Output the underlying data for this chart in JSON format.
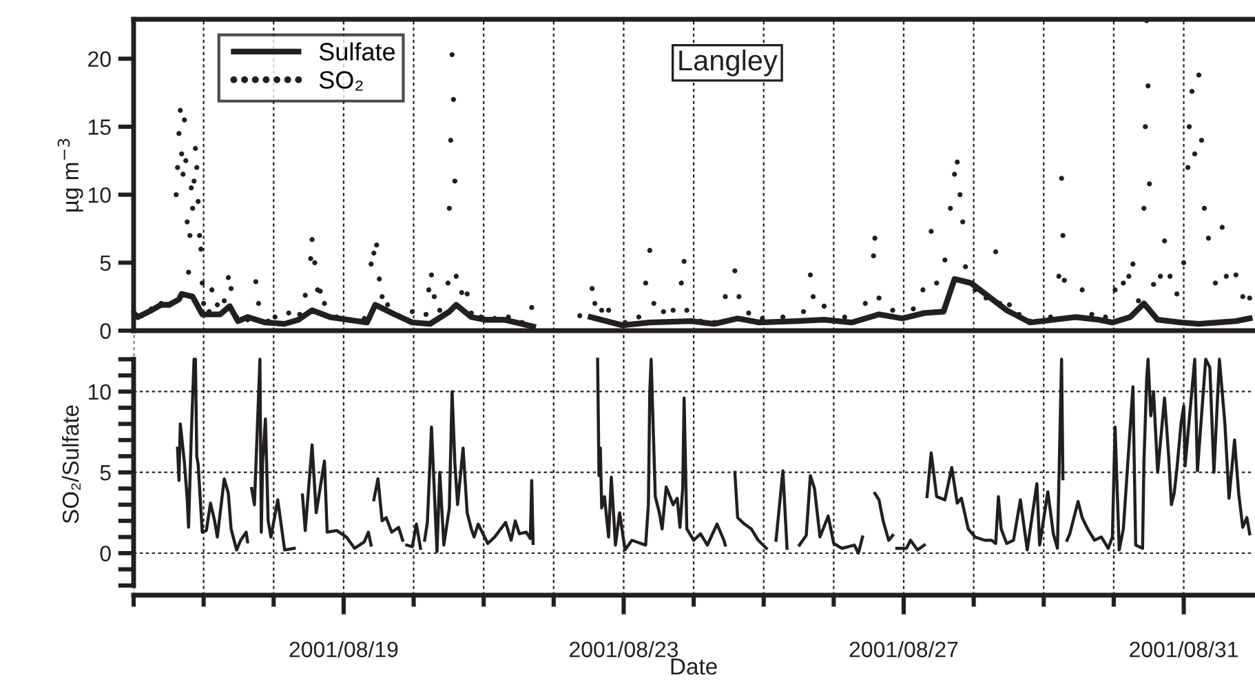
{
  "chart_data": [
    {
      "type": "line",
      "ylabel": "µg m$^{−3}$",
      "annotations": [
        "Langley"
      ],
      "legend": "top left",
      "grid": "x",
      "tick_labels": "y",
      "xlim": [
        "2001-08-16",
        "2001-09-01"
      ],
      "xticks": [
        {
          "value": "2001-08-16",
          "label": null
        },
        {
          "value": "2001-08-17",
          "label": null
        },
        {
          "value": "2001-08-18",
          "label": null
        },
        {
          "value": "2001-08-19",
          "label": null
        },
        {
          "value": "2001-08-20",
          "label": null
        },
        {
          "value": "2001-08-21",
          "label": null
        },
        {
          "value": "2001-08-22",
          "label": null
        },
        {
          "value": "2001-08-23",
          "label": null
        },
        {
          "value": "2001-08-24",
          "label": null
        },
        {
          "value": "2001-08-25",
          "label": null
        },
        {
          "value": "2001-08-26",
          "label": null
        },
        {
          "value": "2001-08-27",
          "label": null
        },
        {
          "value": "2001-08-28",
          "label": null
        },
        {
          "value": "2001-08-29",
          "label": null
        },
        {
          "value": "2001-08-30",
          "label": null
        },
        {
          "value": "2001-08-31",
          "label": null
        }
      ],
      "ylim": [
        0,
        22.9
      ],
      "yticks": [
        0,
        5,
        10,
        15,
        20
      ],
      "series": [
        {
          "name": "Sulfate",
          "color": "#231f20",
          "x": [
            "2001-08-16T00:00",
            "2001-08-16T01:25",
            "2001-08-16T06:07",
            "2001-08-16T09:25",
            "2001-08-16T12:14",
            "2001-08-16T15:32",
            "2001-08-16T16:28",
            "2001-08-16T20:14",
            "2001-08-16T23:32",
            "2001-08-17T05:39",
            "2001-08-17T08:57",
            "2001-08-17T11:46",
            "2001-08-17T15:04",
            "2001-08-17T21:11",
            "2001-08-18T03:46",
            "2001-08-18T08:28",
            "2001-08-18T13:11",
            "2001-08-18T19:18",
            "2001-08-19T01:25",
            "2001-08-19T08:00",
            "2001-08-19T10:50",
            "2001-08-19T17:25",
            "2001-08-19T23:32",
            "2001-08-20T05:39",
            "2001-08-20T12:14",
            "2001-08-20T14:35",
            "2001-08-20T19:46",
            "2001-08-21T00:28",
            "2001-08-21T07:04",
            "2001-08-21T13:11",
            "2001-08-21T16:57",
            "2001-08-22T03:00",
            "2001-08-22T12:42",
            "2001-08-22T23:32",
            "2001-08-23T08:57",
            "2001-08-23T23:04",
            "2001-08-24T07:04",
            "2001-08-24T15:04",
            "2001-08-24T22:36",
            "2001-08-25T11:18",
            "2001-08-25T20:43",
            "2001-08-26T06:07",
            "2001-08-26T15:32",
            "2001-08-26T23:32",
            "2001-08-27T07:04",
            "2001-08-27T13:39",
            "2001-08-27T17:25",
            "2001-08-27T23:04",
            "2001-08-28T05:11",
            "2001-08-28T11:18",
            "2001-08-28T19:18",
            "2001-08-29T03:18",
            "2001-08-29T10:50",
            "2001-08-29T18:50",
            "2001-08-29T23:32",
            "2001-08-30T05:39",
            "2001-08-30T10:21",
            "2001-08-30T15:04",
            "2001-08-30T23:04",
            "2001-08-31T05:11",
            "2001-08-31T17:53",
            "2001-08-31T22:36"
          ],
          "values": [
            1.3,
            1.0,
            1.5,
            1.9,
            1.9,
            2.3,
            2.7,
            2.5,
            1.2,
            1.2,
            1.8,
            0.7,
            1.0,
            0.6,
            0.5,
            0.8,
            1.5,
            1.0,
            0.8,
            0.6,
            1.9,
            1.2,
            0.6,
            0.5,
            1.4,
            1.9,
            1.0,
            0.8,
            0.8,
            0.5,
            0.3,
            null,
            1.0,
            0.4,
            0.6,
            0.7,
            0.5,
            0.9,
            0.6,
            0.7,
            0.8,
            0.6,
            1.2,
            0.9,
            1.3,
            1.4,
            3.8,
            3.5,
            2.5,
            1.5,
            0.6,
            0.8,
            1.0,
            0.8,
            0.6,
            1.0,
            2.0,
            0.8,
            0.6,
            0.5,
            0.7,
            0.9
          ]
        },
        {
          "name": "SO₂",
          "color": "#231f20",
          "type": "scatter",
          "marker": "circle",
          "x": [
            "2001-08-16T00:00",
            "2001-08-16T02:49",
            "2001-08-16T06:07",
            "2001-08-16T09:25",
            "2001-08-16T12:42",
            "2001-08-16T14:35",
            "2001-08-16T15:04",
            "2001-08-16T15:32",
            "2001-08-16T16:00",
            "2001-08-16T16:28",
            "2001-08-16T16:57",
            "2001-08-16T17:25",
            "2001-08-16T17:53",
            "2001-08-16T18:21",
            "2001-08-16T18:50",
            "2001-08-16T19:18",
            "2001-08-16T19:46",
            "2001-08-16T20:14",
            "2001-08-16T20:43",
            "2001-08-16T21:11",
            "2001-08-16T21:39",
            "2001-08-16T22:07",
            "2001-08-16T22:36",
            "2001-08-16T23:04",
            "2001-08-16T23:32",
            "2001-08-17T00:00",
            "2001-08-17T01:53",
            "2001-08-17T02:49",
            "2001-08-17T04:42",
            "2001-08-17T07:04",
            "2001-08-17T08:28",
            "2001-08-17T09:25",
            "2001-08-17T11:18",
            "2001-08-17T15:04",
            "2001-08-17T17:53",
            "2001-08-17T18:50",
            "2001-08-17T22:07",
            "2001-08-18T00:28",
            "2001-08-18T05:11",
            "2001-08-18T08:57",
            "2001-08-18T10:50",
            "2001-08-18T12:42",
            "2001-08-18T13:11",
            "2001-08-18T14:07",
            "2001-08-18T15:04",
            "2001-08-18T16:00",
            "2001-08-18T17:25",
            "2001-08-18T21:39",
            "2001-08-19T02:21",
            "2001-08-19T07:04",
            "2001-08-19T09:25",
            "2001-08-19T10:21",
            "2001-08-19T11:18",
            "2001-08-19T12:14",
            "2001-08-19T13:11",
            "2001-08-19T15:04",
            "2001-08-19T18:50",
            "2001-08-19T23:32",
            "2001-08-20T04:14",
            "2001-08-20T05:11",
            "2001-08-20T06:07",
            "2001-08-20T07:04",
            "2001-08-20T08:57",
            "2001-08-20T11:46",
            "2001-08-20T12:14",
            "2001-08-20T12:42",
            "2001-08-20T13:11",
            "2001-08-20T13:39",
            "2001-08-20T14:07",
            "2001-08-20T14:35",
            "2001-08-20T16:28",
            "2001-08-20T18:21",
            "2001-08-20T19:46",
            "2001-08-20T23:04",
            "2001-08-21T03:46",
            "2001-08-21T08:28",
            "2001-08-21T13:11",
            "2001-08-21T16:28",
            "2001-08-22T08:57",
            "2001-08-22T13:11",
            "2001-08-22T14:07",
            "2001-08-22T16:28",
            "2001-08-22T18:50",
            "2001-08-23T00:28",
            "2001-08-23T05:11",
            "2001-08-23T07:32",
            "2001-08-23T08:57",
            "2001-08-23T10:21",
            "2001-08-23T13:39",
            "2001-08-23T16:57",
            "2001-08-23T19:46",
            "2001-08-23T20:43",
            "2001-08-23T21:39",
            "2001-08-24T02:21",
            "2001-08-24T07:04",
            "2001-08-24T10:50",
            "2001-08-24T14:07",
            "2001-08-24T15:32",
            "2001-08-24T18:50",
            "2001-08-24T23:32",
            "2001-08-25T06:35",
            "2001-08-25T13:39",
            "2001-08-25T16:00",
            "2001-08-25T16:57",
            "2001-08-25T20:43",
            "2001-08-26T03:46",
            "2001-08-26T10:50",
            "2001-08-26T13:39",
            "2001-08-26T14:07",
            "2001-08-26T15:32",
            "2001-08-26T20:14",
            "2001-08-27T03:18",
            "2001-08-27T06:35",
            "2001-08-27T09:25",
            "2001-08-27T11:18",
            "2001-08-27T14:07",
            "2001-08-27T16:00",
            "2001-08-27T17:25",
            "2001-08-27T18:21",
            "2001-08-27T19:18",
            "2001-08-27T20:14",
            "2001-08-27T21:11",
            "2001-08-28T00:28",
            "2001-08-28T04:14",
            "2001-08-28T07:32",
            "2001-08-28T08:57",
            "2001-08-28T12:14",
            "2001-08-28T15:32",
            "2001-08-28T19:18",
            "2001-08-29T02:21",
            "2001-08-29T05:11",
            "2001-08-29T06:07",
            "2001-08-29T06:35",
            "2001-08-29T07:04",
            "2001-08-29T13:11",
            "2001-08-29T16:28",
            "2001-08-29T21:11",
            "2001-08-30T00:28",
            "2001-08-30T03:18",
            "2001-08-30T05:11",
            "2001-08-30T06:35",
            "2001-08-30T08:28",
            "2001-08-30T10:21",
            "2001-08-30T10:50",
            "2001-08-30T11:18",
            "2001-08-30T11:46",
            "2001-08-30T12:14",
            "2001-08-30T13:39",
            "2001-08-30T16:00",
            "2001-08-30T17:25",
            "2001-08-30T19:18",
            "2001-08-30T21:39",
            "2001-08-31T00:00",
            "2001-08-31T01:25",
            "2001-08-31T01:53",
            "2001-08-31T02:49",
            "2001-08-31T03:46",
            "2001-08-31T05:11",
            "2001-08-31T06:07",
            "2001-08-31T07:04",
            "2001-08-31T08:28",
            "2001-08-31T10:50",
            "2001-08-31T13:11",
            "2001-08-31T14:35",
            "2001-08-31T17:53",
            "2001-08-31T20:14",
            "2001-08-31T22:36"
          ],
          "values": [
            1.4,
            1.1,
            1.6,
            2.0,
            2.0,
            10.0,
            12.0,
            14.5,
            16.2,
            13.0,
            11.5,
            15.5,
            12.5,
            8.0,
            4.3,
            7.0,
            10.5,
            9.0,
            11.0,
            13.4,
            12.0,
            9.5,
            7.0,
            6.0,
            3.5,
            2.0,
            1.4,
            3.0,
            1.9,
            2.2,
            3.9,
            3.1,
            1.0,
            0.8,
            3.6,
            2.0,
            0.7,
            1.0,
            1.3,
            1.2,
            2.6,
            5.3,
            6.7,
            5.0,
            3.0,
            2.9,
            2.0,
            1.0,
            0.8,
            0.9,
            4.9,
            5.7,
            6.3,
            3.8,
            2.5,
            1.9,
            1.1,
            1.4,
            1.2,
            3.0,
            4.1,
            2.5,
            1.5,
            3.5,
            9.0,
            14.0,
            20.3,
            17.0,
            11.0,
            4.0,
            2.8,
            2.7,
            1.3,
            1.0,
            0.9,
            1.0,
            0.6,
            1.7,
            1.1,
            3.1,
            2.0,
            1.5,
            1.5,
            0.6,
            1.0,
            3.5,
            5.9,
            2.0,
            1.4,
            1.5,
            3.5,
            5.1,
            1.5,
            0.7,
            0.6,
            2.5,
            4.4,
            2.5,
            1.3,
            0.9,
            1.0,
            1.4,
            4.1,
            2.5,
            1.8,
            1.0,
            2.0,
            5.5,
            6.8,
            2.4,
            1.5,
            1.6,
            3.0,
            7.3,
            3.5,
            5.2,
            9.0,
            11.5,
            12.4,
            10.0,
            8.0,
            4.7,
            3.0,
            2.4,
            5.8,
            2.0,
            1.9,
            1.2,
            0.7,
            1.0,
            4.0,
            11.2,
            7.0,
            3.7,
            3.0,
            1.2,
            1.0,
            3.0,
            3.5,
            4.0,
            4.9,
            2.2,
            9.0,
            15.0,
            22.8,
            18.0,
            10.8,
            3.4,
            4.0,
            6.6,
            4.0,
            2.7,
            5.0,
            12.0,
            15.0,
            17.6,
            13.0,
            18.8,
            14.0,
            9.0,
            6.8,
            3.5,
            7.6,
            4.0,
            4.1,
            2.5,
            2.4
          ]
        }
      ]
    },
    {
      "type": "line",
      "ylabel": "SO₂/Sulfate",
      "xlabel": "Date",
      "grid": true,
      "xlim": [
        "2001-08-16",
        "2001-09-01"
      ],
      "xticks": [
        {
          "value": "2001-08-16",
          "label": null
        },
        {
          "value": "2001-08-17",
          "label": null
        },
        {
          "value": "2001-08-18",
          "label": null
        },
        {
          "value": "2001-08-19",
          "label": "2001/08/19"
        },
        {
          "value": "2001-08-20",
          "label": null
        },
        {
          "value": "2001-08-21",
          "label": null
        },
        {
          "value": "2001-08-22",
          "label": null
        },
        {
          "value": "2001-08-23",
          "label": "2001/08/23"
        },
        {
          "value": "2001-08-24",
          "label": null
        },
        {
          "value": "2001-08-25",
          "label": null
        },
        {
          "value": "2001-08-26",
          "label": null
        },
        {
          "value": "2001-08-27",
          "label": "2001/08/27"
        },
        {
          "value": "2001-08-28",
          "label": null
        },
        {
          "value": "2001-08-29",
          "label": null
        },
        {
          "value": "2001-08-30",
          "label": null
        },
        {
          "value": "2001-08-31",
          "label": "2001/08/31"
        }
      ],
      "ylim": [
        -2.6,
        13.6
      ],
      "yticks": [
        {
          "value": -2,
          "label": null
        },
        {
          "value": -1,
          "label": null
        },
        0,
        {
          "value": 1,
          "label": null
        },
        {
          "value": 2,
          "label": null
        },
        {
          "value": 3,
          "label": null
        },
        {
          "value": 4,
          "label": null
        },
        5,
        {
          "value": 6,
          "label": null
        },
        {
          "value": 7,
          "label": null
        },
        {
          "value": 8,
          "label": null
        },
        {
          "value": 9,
          "label": null
        },
        10,
        {
          "value": 11,
          "label": null
        },
        {
          "value": 12,
          "label": null
        }
      ],
      "series": [
        {
          "color": "#231f20",
          "x": [
            "2001-08-16T15:04",
            "2001-08-16T15:32",
            "2001-08-16T16:00",
            "2001-08-16T17:25",
            "2001-08-16T18:21",
            "2001-08-16T18:50",
            "2001-08-16T19:46",
            "2001-08-16T20:43",
            "2001-08-16T21:11",
            "2001-08-16T21:39",
            "2001-08-16T22:07",
            "2001-08-16T23:32",
            "2001-08-17T00:56",
            "2001-08-17T02:21",
            "2001-08-17T03:46",
            "2001-08-17T04:42",
            "2001-08-17T07:04",
            "2001-08-17T08:28",
            "2001-08-17T09:25",
            "2001-08-17T11:18",
            "2001-08-17T12:42",
            "2001-08-17T14:35",
            "2001-08-17T15:04",
            "2001-08-17T15:32",
            "2001-08-17T16:28",
            "2001-08-17T17:25",
            "2001-08-17T19:18",
            "2001-08-17T19:46",
            "2001-08-17T20:14",
            "2001-08-17T21:11",
            "2001-08-17T22:07",
            "2001-08-17T23:04",
            "2001-08-18T01:25",
            "2001-08-18T03:46",
            "2001-08-18T07:04",
            "2001-08-18T08:28",
            "2001-08-18T09:53",
            "2001-08-18T10:50",
            "2001-08-18T13:11",
            "2001-08-18T14:35",
            "2001-08-18T17:25",
            "2001-08-18T18:21",
            "2001-08-18T21:39",
            "2001-08-19T00:56",
            "2001-08-19T03:46",
            "2001-08-19T07:04",
            "2001-08-19T08:28",
            "2001-08-19T09:25",
            "2001-08-19T09:53",
            "2001-08-19T10:21",
            "2001-08-19T11:46",
            "2001-08-19T13:11",
            "2001-08-19T14:35",
            "2001-08-19T16:28",
            "2001-08-19T18:50",
            "2001-08-19T20:14",
            "2001-08-19T20:43",
            "2001-08-19T21:39",
            "2001-08-19T23:32",
            "2001-08-20T00:56",
            "2001-08-20T02:21",
            "2001-08-20T02:49",
            "2001-08-20T03:46",
            "2001-08-20T04:42",
            "2001-08-20T06:07",
            "2001-08-20T08:00",
            "2001-08-20T08:57",
            "2001-08-20T10:21",
            "2001-08-20T12:14",
            "2001-08-20T13:11",
            "2001-08-20T14:07",
            "2001-08-20T15:04",
            "2001-08-20T16:57",
            "2001-08-20T18:21",
            "2001-08-20T19:46",
            "2001-08-20T20:43",
            "2001-08-20T22:07",
            "2001-08-21T01:25",
            "2001-08-21T03:46",
            "2001-08-21T07:32",
            "2001-08-21T09:25",
            "2001-08-21T10:50",
            "2001-08-21T12:14",
            "2001-08-21T14:35",
            "2001-08-21T16:00",
            "2001-08-21T16:28",
            "2001-08-21T16:57",
            "2001-08-21T22:36",
            "2001-08-22T15:04",
            "2001-08-22T15:32",
            "2001-08-22T16:00",
            "2001-08-22T16:28",
            "2001-08-22T17:25",
            "2001-08-22T18:50",
            "2001-08-22T19:46",
            "2001-08-22T21:11",
            "2001-08-22T22:36",
            "2001-08-23T00:28",
            "2001-08-23T02:49",
            "2001-08-23T07:32",
            "2001-08-23T08:28",
            "2001-08-23T08:57",
            "2001-08-23T09:25",
            "2001-08-23T10:50",
            "2001-08-23T12:14",
            "2001-08-23T13:11",
            "2001-08-23T14:35",
            "2001-08-23T16:57",
            "2001-08-23T18:21",
            "2001-08-23T19:18",
            "2001-08-23T20:14",
            "2001-08-23T20:43",
            "2001-08-23T21:39",
            "2001-08-24T00:00",
            "2001-08-24T02:21",
            "2001-08-24T04:42",
            "2001-08-24T08:00",
            "2001-08-24T10:21",
            "2001-08-24T10:50",
            "2001-08-24T12:14",
            "2001-08-24T14:07",
            "2001-08-24T15:04",
            "2001-08-24T17:25",
            "2001-08-24T19:46",
            "2001-08-24T22:07",
            "2001-08-25T00:56",
            "2001-08-25T02:21",
            "2001-08-25T04:14",
            "2001-08-25T06:35",
            "2001-08-25T08:00",
            "2001-08-25T09:53",
            "2001-08-25T12:14",
            "2001-08-25T14:35",
            "2001-08-25T16:00",
            "2001-08-25T17:25",
            "2001-08-25T19:18",
            "2001-08-25T22:07",
            "2001-08-26T00:00",
            "2001-08-26T02:49",
            "2001-08-26T07:04",
            "2001-08-26T08:28",
            "2001-08-26T09:53",
            "2001-08-26T11:46",
            "2001-08-26T14:07",
            "2001-08-26T15:32",
            "2001-08-26T16:57",
            "2001-08-26T18:50",
            "2001-08-26T20:14",
            "2001-08-26T20:43",
            "2001-08-26T21:39",
            "2001-08-27T00:56",
            "2001-08-27T02:21",
            "2001-08-27T04:42",
            "2001-08-27T07:04",
            "2001-08-27T07:32",
            "2001-08-27T08:00",
            "2001-08-27T09:25",
            "2001-08-27T11:18",
            "2001-08-27T14:07",
            "2001-08-27T16:28",
            "2001-08-27T18:21",
            "2001-08-27T19:46",
            "2001-08-27T22:07",
            "2001-08-28T00:28",
            "2001-08-28T03:46",
            "2001-08-28T06:07",
            "2001-08-28T07:32",
            "2001-08-28T08:28",
            "2001-08-28T09:25",
            "2001-08-28T11:18",
            "2001-08-28T13:39",
            "2001-08-28T16:00",
            "2001-08-28T18:21",
            "2001-08-28T21:39",
            "2001-08-28T22:36",
            "2001-08-29T01:25",
            "2001-08-29T03:18",
            "2001-08-29T04:42",
            "2001-08-29T06:07",
            "2001-08-29T06:35",
            "2001-08-29T07:04",
            "2001-08-29T08:00",
            "2001-08-29T08:57",
            "2001-08-29T11:46",
            "2001-08-29T13:11",
            "2001-08-29T15:04",
            "2001-08-29T17:25",
            "2001-08-29T19:46",
            "2001-08-29T22:07",
            "2001-08-29T23:32",
            "2001-08-30T00:28",
            "2001-08-30T01:53",
            "2001-08-30T03:18",
            "2001-08-30T06:35",
            "2001-08-30T07:32",
            "2001-08-30T09:53",
            "2001-08-30T10:21",
            "2001-08-30T11:18",
            "2001-08-30T11:46",
            "2001-08-30T12:42",
            "2001-08-30T13:39",
            "2001-08-30T15:04",
            "2001-08-30T17:25",
            "2001-08-30T18:50",
            "2001-08-30T19:46",
            "2001-08-30T20:43",
            "2001-08-30T21:39",
            "2001-08-30T23:04",
            "2001-08-31T00:00",
            "2001-08-31T00:28",
            "2001-08-31T03:46",
            "2001-08-31T04:42",
            "2001-08-31T07:32",
            "2001-08-31T08:57",
            "2001-08-31T10:21",
            "2001-08-31T12:14",
            "2001-08-31T14:07",
            "2001-08-31T15:32",
            "2001-08-31T17:25",
            "2001-08-31T18:50",
            "2001-08-31T20:14",
            "2001-08-31T21:39",
            "2001-08-31T22:36"
          ],
          "values": [
            6.5,
            4.5,
            8.0,
            5.6,
            3.4,
            1.6,
            7.3,
            12.0,
            12.0,
            6.0,
            5.5,
            1.3,
            1.4,
            3.1,
            2.0,
            1.0,
            4.6,
            3.7,
            1.5,
            0.2,
            0.8,
            1.3,
            0.7,
            null,
            4.0,
            3.0,
            12.0,
            1.3,
            5.7,
            8.3,
            2.0,
            1.0,
            3.3,
            0.2,
            0.3,
            null,
            3.6,
            1.4,
            6.7,
            2.5,
            5.7,
            1.3,
            1.4,
            1.0,
            0.3,
            0.7,
            1.3,
            0.5,
            null,
            3.3,
            4.6,
            2.0,
            2.2,
            1.3,
            1.6,
            0.8,
            null,
            0.5,
            0.4,
            1.8,
            0.3,
            null,
            0.8,
            1.9,
            7.8,
            0.1,
            5.0,
            0.5,
            2.8,
            10.0,
            5.6,
            3.0,
            6.5,
            2.5,
            1.5,
            1.0,
            1.8,
            0.6,
            1.0,
            1.9,
            0.8,
            2.0,
            1.2,
            1.3,
            0.9,
            4.5,
            0.6,
            null,
            12.0,
            4.8,
            6.5,
            2.8,
            3.5,
            1.0,
            4.7,
            0.5,
            2.5,
            0.2,
            0.8,
            0.5,
            3.0,
            10.0,
            12.0,
            3.5,
            2.5,
            1.5,
            4.1,
            3.0,
            3.4,
            1.6,
            4.0,
            9.6,
            1.5,
            0.8,
            1.2,
            0.5,
            1.8,
            0.8,
            0.5,
            null,
            5.0,
            2.2,
            1.8,
            1.5,
            0.8,
            0.3,
            null,
            0.8,
            5.1,
            0.3,
            null,
            0.5,
            1.1,
            4.8,
            4.0,
            1.0,
            2.3,
            0.6,
            0.3,
            0.5,
            0.0,
            1.0,
            null,
            3.7,
            3.3,
            2.0,
            0.8,
            1.1,
            null,
            0.3,
            0.3,
            0.8,
            0.2,
            0.5,
            null,
            3.5,
            6.2,
            3.5,
            3.3,
            5.3,
            3.1,
            3.4,
            1.5,
            1.0,
            0.8,
            0.8,
            0.6,
            3.5,
            1.5,
            0.6,
            0.8,
            3.3,
            0.2,
            4.3,
            0.5,
            3.8,
            1.2,
            0.3,
            12.0,
            4.6,
            null,
            0.8,
            1.2,
            3.2,
            2.2,
            1.5,
            0.8,
            1.0,
            0.3,
            1.0,
            7.8,
            0.2,
            1.5,
            10.3,
            0.5,
            0.3,
            5.6,
            10.8,
            12.0,
            8.5,
            10.0,
            5.0,
            9.6,
            6.0,
            3.0,
            3.7,
            5.2,
            8.0,
            9.1,
            5.4,
            12.0,
            5.1,
            12.0,
            11.5,
            5.0,
            12.0,
            8.0,
            3.4,
            7.0,
            3.7,
            1.6,
            2.2,
            1.2
          ]
        }
      ]
    }
  ]
}
